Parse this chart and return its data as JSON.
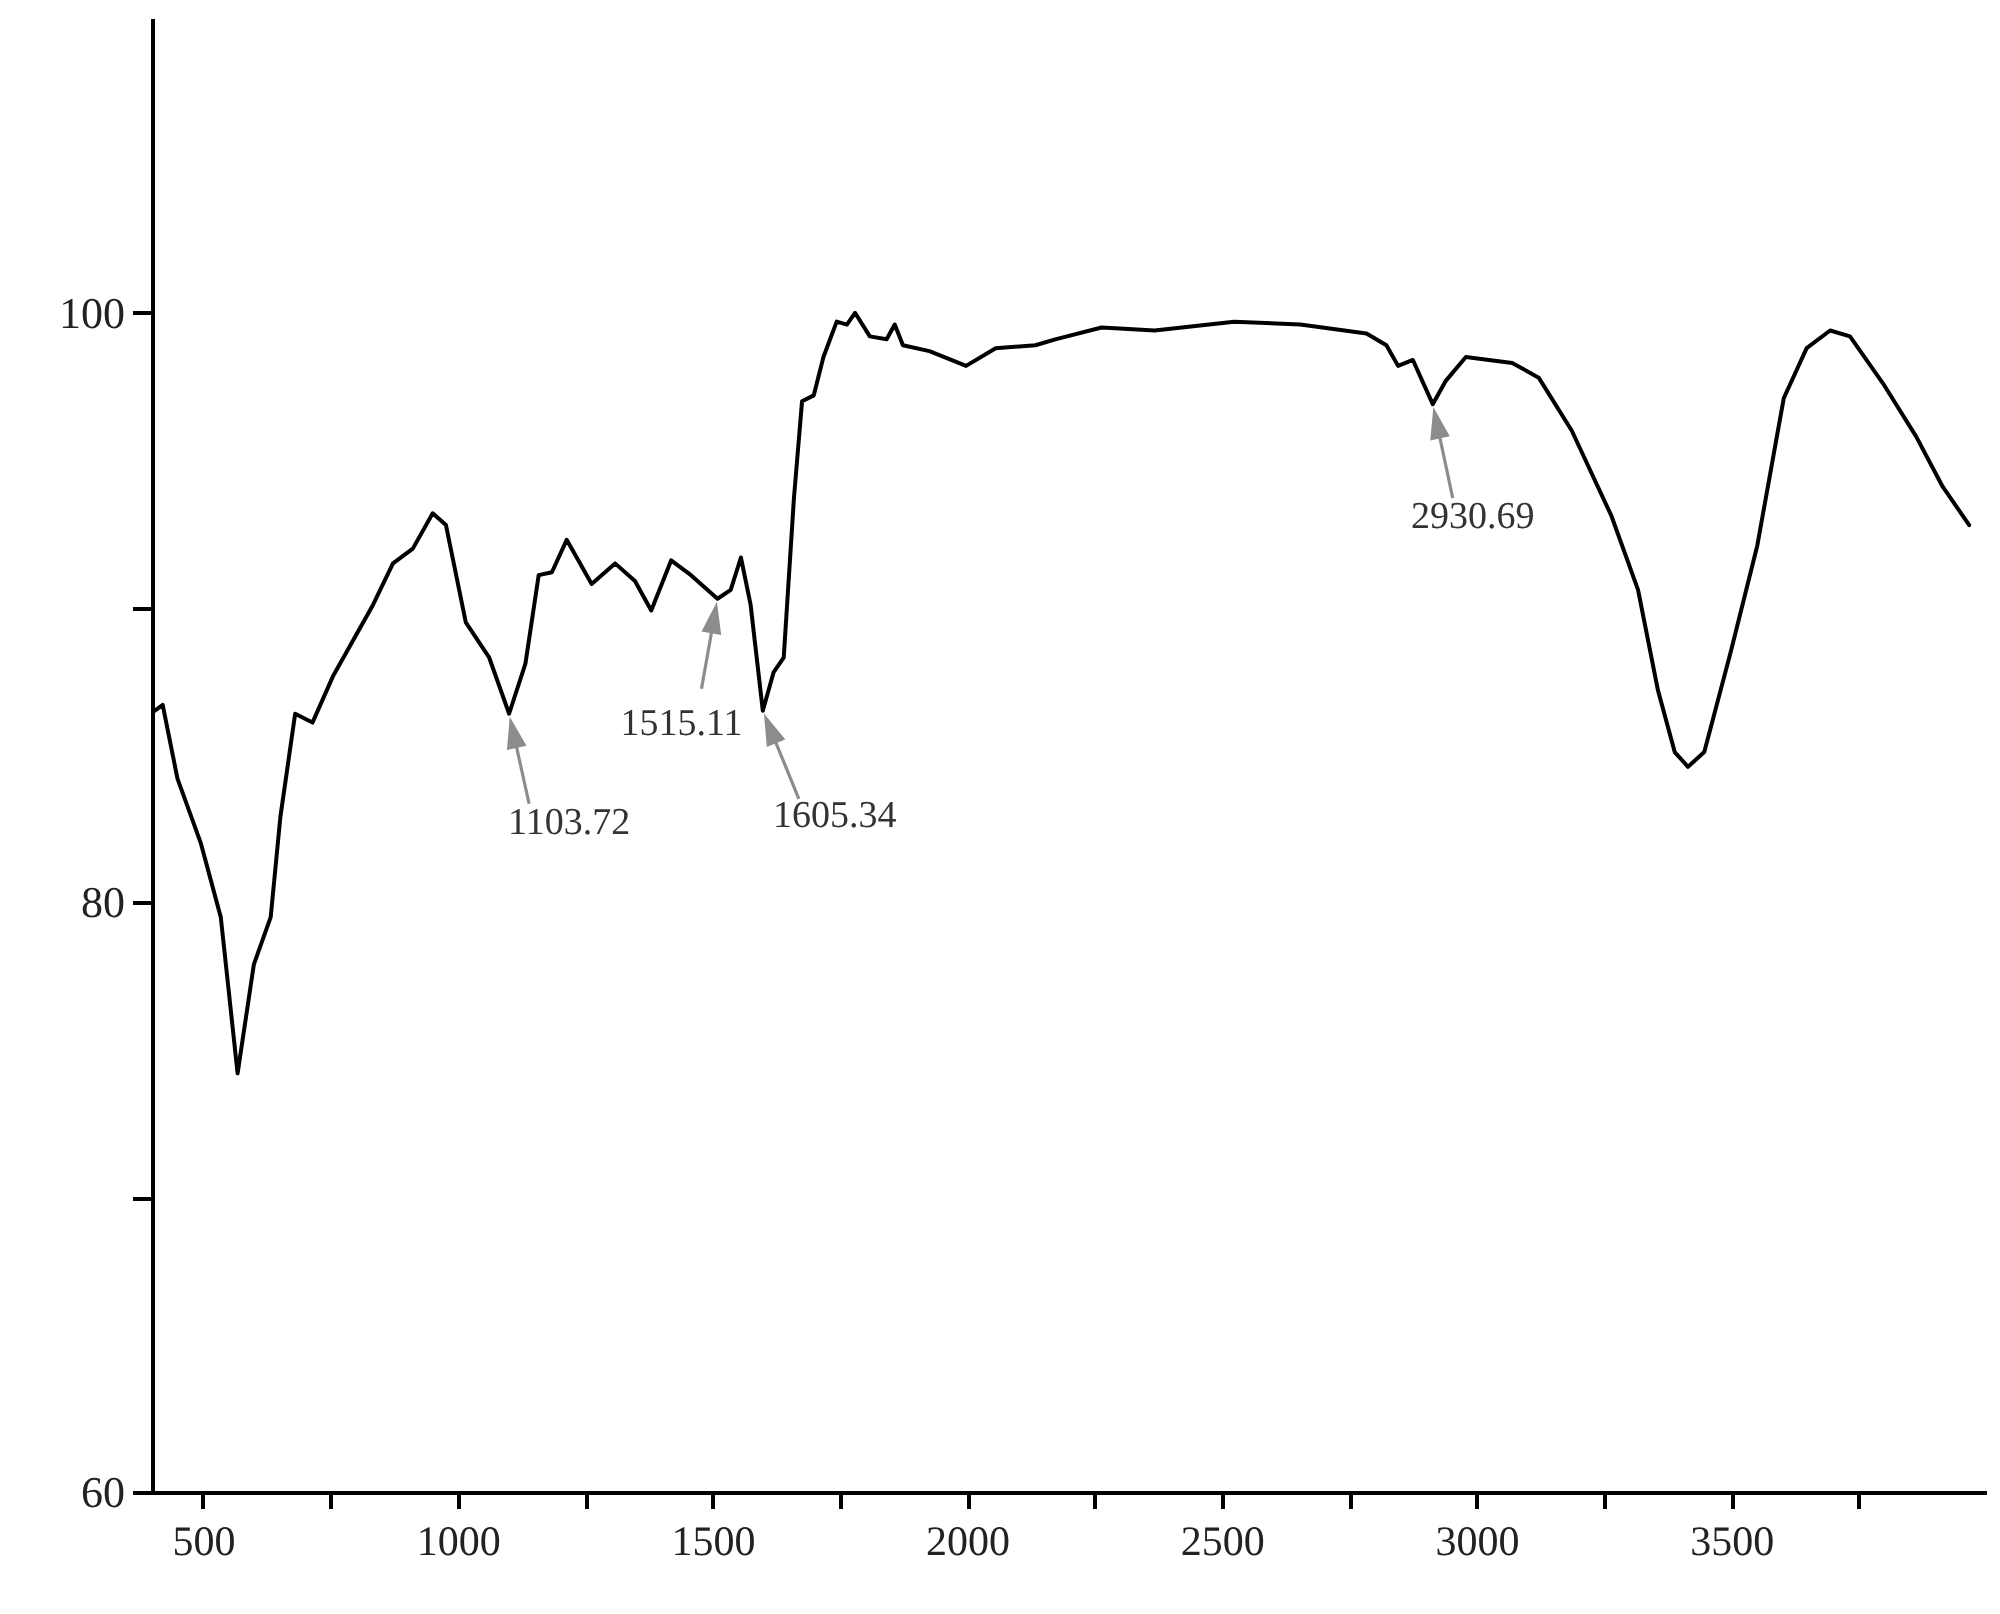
{
  "chart_data": {
    "type": "line",
    "x": [
      405,
      421,
      450,
      496,
      535,
      568,
      600,
      633,
      652,
      681,
      715,
      756,
      834,
      873,
      912,
      951,
      977,
      1016,
      1062,
      1101,
      1133,
      1159,
      1185,
      1214,
      1237,
      1263,
      1309,
      1348,
      1380,
      1419,
      1458,
      1510,
      1536,
      1556,
      1575,
      1599,
      1620,
      1640,
      1660,
      1676,
      1699,
      1718,
      1744,
      1764,
      1780,
      1809,
      1842,
      1858,
      1874,
      1926,
      1998,
      2056,
      2134,
      2173,
      2264,
      2368,
      2524,
      2654,
      2784,
      2823,
      2846,
      2875,
      2914,
      2940,
      2979,
      3070,
      3122,
      3187,
      3265,
      3317,
      3356,
      3389,
      3415,
      3447,
      3499,
      3551,
      3603,
      3648,
      3694,
      3733,
      3798,
      3863,
      3915,
      3967
    ],
    "series": [
      {
        "color": "#000000",
        "values": [
          86.5,
          86.7,
          84.2,
          82.0,
          79.5,
          74.2,
          77.9,
          79.5,
          82.9,
          86.4,
          86.1,
          87.7,
          90.1,
          91.5,
          92.0,
          93.2,
          92.8,
          89.5,
          88.3,
          86.4,
          88.1,
          91.1,
          91.2,
          92.3,
          91.6,
          90.8,
          91.5,
          90.9,
          89.9,
          91.6,
          91.1,
          90.3,
          90.6,
          91.7,
          90.1,
          86.5,
          87.8,
          88.3,
          93.7,
          97.0,
          97.2,
          98.5,
          99.7,
          99.6,
          100.0,
          99.2,
          99.1,
          99.6,
          98.9,
          98.7,
          98.2,
          98.8,
          98.9,
          99.1,
          99.5,
          99.4,
          99.7,
          99.6,
          99.3,
          98.9,
          98.2,
          98.4,
          96.9,
          97.7,
          98.5,
          98.3,
          97.8,
          96.0,
          93.1,
          90.6,
          87.2,
          85.1,
          84.6,
          85.1,
          88.5,
          92.1,
          97.1,
          98.8,
          99.4,
          99.2,
          97.6,
          95.8,
          94.1,
          92.8
        ]
      }
    ],
    "xlim": [
      400,
      4000
    ],
    "xticks": [
      500,
      {
        "value": 750,
        "label": null
      },
      1000,
      {
        "value": 1250,
        "label": null
      },
      1500,
      {
        "value": 1750,
        "label": null
      },
      2000,
      {
        "value": 2250,
        "label": null
      },
      2500,
      {
        "value": 2750,
        "label": null
      },
      3000,
      {
        "value": 3250,
        "label": null
      },
      3500,
      {
        "value": 3750,
        "label": null
      }
    ],
    "ylim": [
      60,
      110
    ],
    "yticks": [
      60,
      {
        "value": 70,
        "label": null
      },
      80,
      {
        "value": 90,
        "label": null
      },
      100
    ],
    "annotations": [
      {
        "text": "1103.72",
        "x": 1101,
        "y": 86.4
      },
      {
        "text": "1515.11",
        "x": 1510,
        "y": 90.3
      },
      {
        "text": "1605.34",
        "x": 1599,
        "y": 86.5
      },
      {
        "text": "2930.69",
        "x": 2914,
        "y": 96.9
      }
    ],
    "grid": false,
    "legend": false,
    "marker": "none",
    "line_style": "solid"
  }
}
